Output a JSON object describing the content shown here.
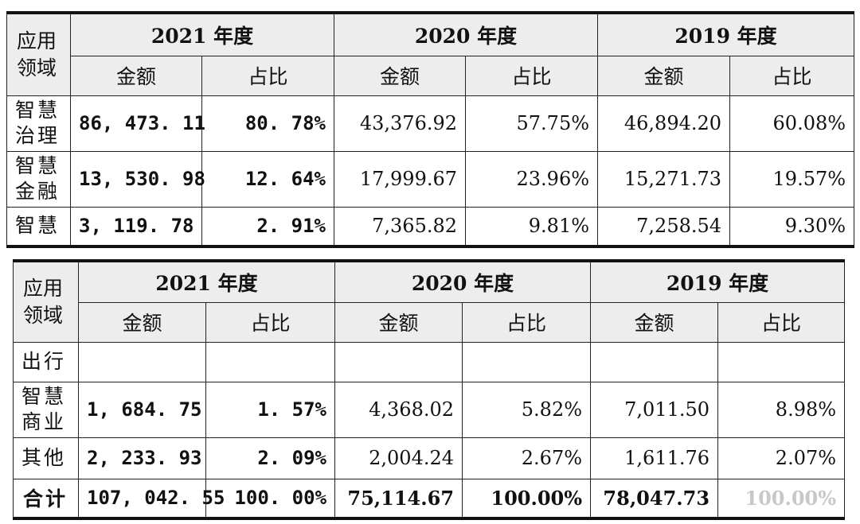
{
  "corner_text": "",
  "headers": {
    "field": [
      "应用",
      "领域"
    ],
    "years": [
      "2021 年度",
      "2020 年度",
      "2019 年度"
    ],
    "amount": "金额",
    "ratio": "占比"
  },
  "table1": {
    "rows": [
      {
        "label": [
          "智慧",
          "治理"
        ],
        "v": [
          "86, 473. 11",
          "80. 78%",
          "43,376.92",
          "57.75%",
          "46,894.20",
          "60.08%"
        ]
      },
      {
        "label": [
          "智慧",
          "金融"
        ],
        "v": [
          "13, 530. 98",
          "12. 64%",
          "17,999.67",
          "23.96%",
          "15,271.73",
          "19.57%"
        ]
      },
      {
        "label": [
          "智慧"
        ],
        "v": [
          "3, 119. 78",
          "2. 91%",
          "7,365.82",
          "9.81%",
          "7,258.54",
          "9.30%"
        ]
      }
    ]
  },
  "table2": {
    "continuation_label": "出行",
    "rows": [
      {
        "label": [
          "智慧",
          "商业"
        ],
        "v": [
          "1, 684. 75",
          "1. 57%",
          "4,368.02",
          "5.82%",
          "7,011.50",
          "8.98%"
        ]
      },
      {
        "label": [
          "其他"
        ],
        "v": [
          "2, 233. 93",
          "2. 09%",
          "2,004.24",
          "2.67%",
          "1,611.76",
          "2.07%"
        ]
      }
    ],
    "total": {
      "label": "合计",
      "v": [
        "107, 042. 55",
        "100. 00%",
        "75,114.67",
        "100.00%",
        "78,047.73",
        "100.00%"
      ]
    }
  }
}
